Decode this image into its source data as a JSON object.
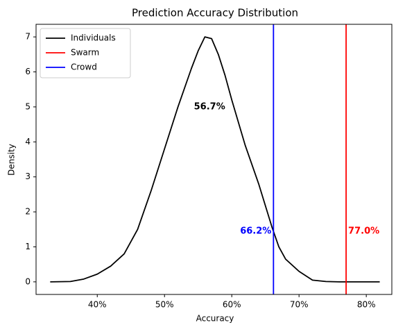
{
  "chart_data": {
    "type": "line",
    "title": "Prediction Accuracy Distribution",
    "x_label": "Accuracy",
    "y_label": "Density",
    "x": [
      33,
      36,
      38,
      40,
      42,
      44,
      46,
      48,
      50,
      52,
      54,
      55,
      56,
      57,
      58,
      59,
      60,
      62,
      64,
      66,
      67,
      68,
      70,
      72,
      74,
      76,
      82
    ],
    "series": [
      {
        "name": "Individuals",
        "color": "#000000",
        "values": [
          0,
          0.01,
          0.08,
          0.22,
          0.45,
          0.8,
          1.5,
          2.6,
          3.8,
          5.0,
          6.1,
          6.6,
          7.0,
          6.95,
          6.5,
          5.9,
          5.2,
          3.9,
          2.8,
          1.55,
          1.0,
          0.65,
          0.3,
          0.05,
          0.01,
          0,
          0
        ]
      }
    ],
    "vlines": [
      {
        "name": "Swarm",
        "color": "#ff0000",
        "value": 77.0,
        "value_label": "77.0%"
      },
      {
        "name": "Crowd",
        "color": "#0000ff",
        "value": 66.2,
        "value_label": "66.2%"
      }
    ],
    "annotation": {
      "value": 56.7,
      "label": "56.7%"
    },
    "xlim": [
      30.9,
      83.8
    ],
    "ylim": [
      -0.36,
      7.36
    ],
    "xticks": [
      {
        "value": 40,
        "label": "40%"
      },
      {
        "value": 50,
        "label": "50%"
      },
      {
        "value": 60,
        "label": "60%"
      },
      {
        "value": 70,
        "label": "70%"
      },
      {
        "value": 80,
        "label": "80%"
      }
    ],
    "yticks": [
      0,
      1,
      2,
      3,
      4,
      5,
      6,
      7
    ],
    "legend": "upper-left"
  }
}
